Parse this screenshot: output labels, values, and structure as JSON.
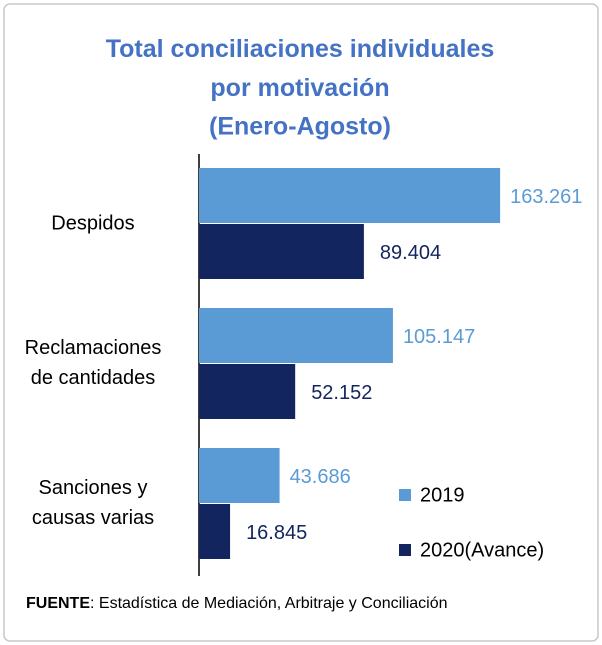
{
  "chart_data": {
    "type": "hbar",
    "title": "Total conciliaciones individuales\npor motivación\n(Enero-Agosto)",
    "categories": [
      "Despidos",
      "Reclamaciones\nde cantidades",
      "Sanciones y\ncausas varias"
    ],
    "series": [
      {
        "name": "2019",
        "color": "#5b9bd5",
        "values": [
          163261,
          105147,
          43686
        ],
        "value_labels": [
          "163.261",
          "105.147",
          "43.686"
        ]
      },
      {
        "name": "2020(Avance)",
        "color": "#13255e",
        "values": [
          89404,
          52152,
          16845
        ],
        "value_labels": [
          "89.404",
          "52.152",
          "16.845"
        ]
      }
    ],
    "xlim": [
      0,
      180000
    ],
    "legend": "lower right",
    "source": {
      "label": "FUENTE",
      "text": ": Estadística de Mediación, Arbitraje y Conciliación"
    }
  }
}
